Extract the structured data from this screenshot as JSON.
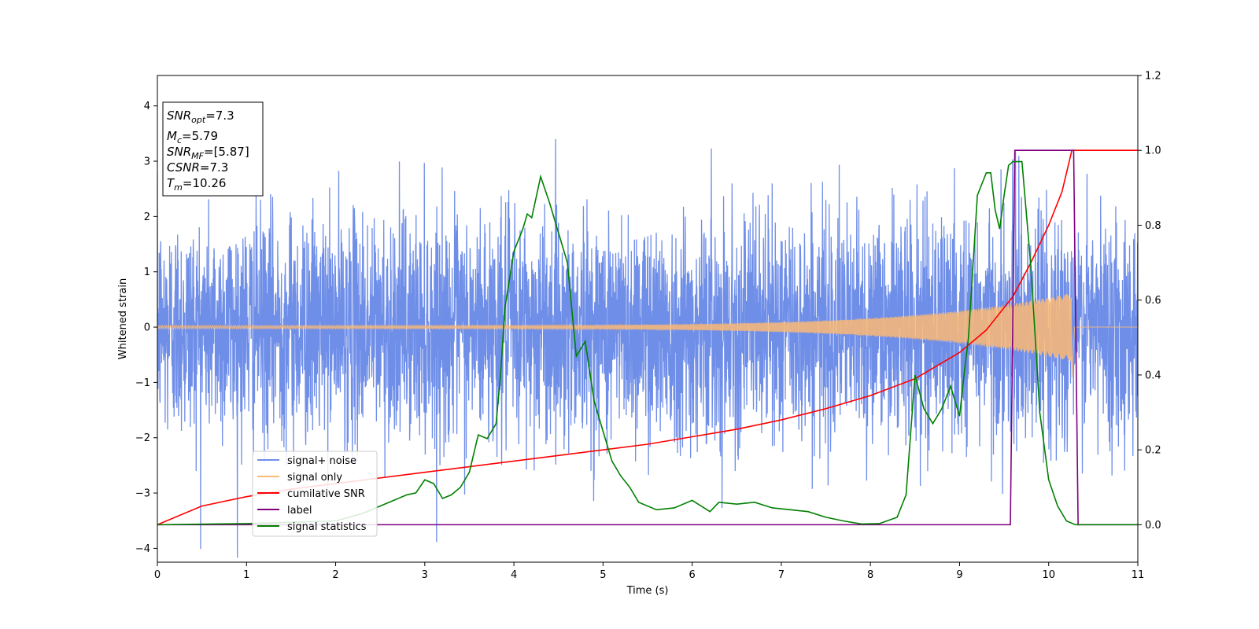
{
  "chart_data": {
    "type": "line",
    "xlabel": "Time (s)",
    "ylabel": "Whitened strain",
    "xlim": [
      0,
      11
    ],
    "ylim": [
      -4.25,
      4.55
    ],
    "y2lim": [
      -0.1,
      1.2
    ],
    "xticks": [
      0,
      1,
      2,
      3,
      4,
      5,
      6,
      7,
      8,
      9,
      10,
      11
    ],
    "yticks": [
      -4,
      -3,
      -2,
      -1,
      0,
      1,
      2,
      3,
      4
    ],
    "y2ticks": [
      "0.0",
      "0.2",
      "0.4",
      "0.6",
      "0.8",
      "1.0",
      "1.2"
    ],
    "grid": false,
    "legend_position": "lower-left",
    "stats_box": {
      "snr_opt": {
        "sym": "SNR",
        "sub": "opt",
        "val": "=7.3"
      },
      "mc": {
        "sym": "M",
        "sub": "c",
        "val": "=5.79"
      },
      "snr_mf": {
        "sym": "SNR",
        "sub": "MF",
        "val": "=[5.87]"
      },
      "csnr": {
        "sym": "CSNR",
        "sub": "",
        "val": "=7.3"
      },
      "tm": {
        "sym": "T",
        "sub": "m",
        "val": "=10.26"
      }
    },
    "series": [
      {
        "name": "signal+ noise",
        "color": "#6F8EE8",
        "axis": "left",
        "kind": "noise",
        "sigma": 1.0,
        "x_range": [
          0,
          11
        ],
        "chirp_start_amp": 0.03,
        "chirp_end_amp": 0.62,
        "chirp_end_time": 10.26
      },
      {
        "name": "signal only",
        "color": "#FDBA74",
        "axis": "left",
        "kind": "chirp",
        "x_range": [
          0,
          11
        ],
        "amp_start": 0.03,
        "amp_end": 0.62,
        "end_time": 10.26,
        "post_dip": -0.95
      },
      {
        "name": "cumilative SNR",
        "color": "#FF0000",
        "axis": "right",
        "x": [
          0,
          0.5,
          1,
          1.5,
          2,
          2.5,
          3,
          3.5,
          4,
          4.5,
          5,
          5.5,
          6,
          6.5,
          7,
          7.5,
          8,
          8.5,
          9,
          9.3,
          9.6,
          9.8,
          10.0,
          10.15,
          10.26,
          11
        ],
        "y": [
          0.0,
          0.05,
          0.075,
          0.095,
          0.11,
          0.125,
          0.14,
          0.155,
          0.17,
          0.185,
          0.2,
          0.215,
          0.235,
          0.255,
          0.28,
          0.31,
          0.345,
          0.39,
          0.46,
          0.52,
          0.61,
          0.7,
          0.8,
          0.89,
          1.0,
          1.0
        ]
      },
      {
        "name": "label",
        "color": "#800080",
        "axis": "right",
        "x": [
          0,
          9.57,
          9.62,
          10.28,
          10.33,
          11
        ],
        "y": [
          0,
          0,
          1,
          1,
          0,
          0
        ]
      },
      {
        "name": "signal statistics",
        "color": "#008000",
        "axis": "right",
        "x": [
          0,
          1,
          2,
          2.3,
          2.5,
          2.7,
          2.8,
          2.9,
          3.0,
          3.1,
          3.2,
          3.3,
          3.4,
          3.5,
          3.6,
          3.7,
          3.8,
          3.85,
          3.9,
          4.0,
          4.1,
          4.15,
          4.2,
          4.3,
          4.4,
          4.5,
          4.6,
          4.7,
          4.8,
          4.9,
          5.0,
          5.1,
          5.2,
          5.3,
          5.4,
          5.6,
          5.8,
          6.0,
          6.2,
          6.3,
          6.5,
          6.7,
          6.9,
          7.1,
          7.3,
          7.5,
          7.7,
          7.9,
          8.1,
          8.3,
          8.4,
          8.5,
          8.6,
          8.7,
          8.8,
          8.9,
          9.0,
          9.05,
          9.1,
          9.2,
          9.3,
          9.35,
          9.4,
          9.45,
          9.5,
          9.55,
          9.6,
          9.7,
          9.8,
          9.9,
          10.0,
          10.1,
          10.2,
          10.3,
          10.4,
          11
        ],
        "y": [
          0.0,
          0.003,
          0.01,
          0.03,
          0.05,
          0.07,
          0.08,
          0.085,
          0.12,
          0.11,
          0.07,
          0.08,
          0.1,
          0.14,
          0.24,
          0.23,
          0.27,
          0.4,
          0.58,
          0.73,
          0.79,
          0.83,
          0.82,
          0.93,
          0.86,
          0.78,
          0.7,
          0.45,
          0.49,
          0.33,
          0.25,
          0.17,
          0.13,
          0.1,
          0.06,
          0.04,
          0.045,
          0.065,
          0.035,
          0.06,
          0.055,
          0.06,
          0.045,
          0.04,
          0.035,
          0.02,
          0.01,
          0.002,
          0.003,
          0.02,
          0.08,
          0.4,
          0.31,
          0.27,
          0.31,
          0.37,
          0.29,
          0.4,
          0.5,
          0.88,
          0.94,
          0.94,
          0.84,
          0.79,
          0.88,
          0.96,
          0.97,
          0.97,
          0.69,
          0.3,
          0.12,
          0.05,
          0.01,
          0.0,
          0.0,
          0.0
        ]
      }
    ]
  }
}
